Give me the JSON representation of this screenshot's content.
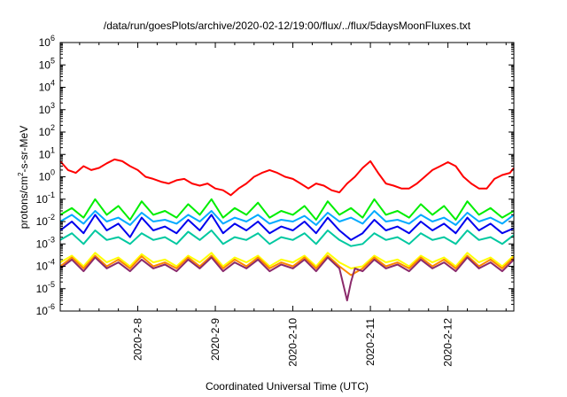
{
  "chart_data": {
    "type": "line",
    "title": "/data/run/goesPlots/archive/2020-02-12/19:00/flux/../flux/5daysMoonFluxes.txt",
    "xlabel": "Coordinated Universal Time (UTC)",
    "ylabel": "protons/cm²-s-sr-MeV",
    "ylabel_parts": {
      "pre": "protons/cm",
      "sup": "2",
      "post": "-s-sr-MeV"
    },
    "y_scale": "log",
    "ylim": [
      1e-06,
      1000000.0
    ],
    "xlim_days": [
      7.0,
      12.85
    ],
    "grid": false,
    "legend": "none",
    "y_ticks": [
      {
        "value": 1e-06,
        "base": "10",
        "exp": "-6"
      },
      {
        "value": 1e-05,
        "base": "10",
        "exp": "-5"
      },
      {
        "value": 0.0001,
        "base": "10",
        "exp": "-4"
      },
      {
        "value": 0.001,
        "base": "10",
        "exp": "-3"
      },
      {
        "value": 0.01,
        "base": "10",
        "exp": "-2"
      },
      {
        "value": 0.1,
        "base": "10",
        "exp": "-1"
      },
      {
        "value": 1,
        "base": "10",
        "exp": "0"
      },
      {
        "value": 10,
        "base": "10",
        "exp": "1"
      },
      {
        "value": 100,
        "base": "10",
        "exp": "2"
      },
      {
        "value": 1000,
        "base": "10",
        "exp": "3"
      },
      {
        "value": 10000,
        "base": "10",
        "exp": "4"
      },
      {
        "value": 100000,
        "base": "10",
        "exp": "5"
      },
      {
        "value": 1000000,
        "base": "10",
        "exp": "6"
      }
    ],
    "x_ticks": [
      {
        "day": 8,
        "label": "2020-2-8"
      },
      {
        "day": 9,
        "label": "2020-2-9"
      },
      {
        "day": 10,
        "label": "2020-2-10"
      },
      {
        "day": 11,
        "label": "2020-2-11"
      },
      {
        "day": 12,
        "label": "2020-2-12"
      }
    ],
    "series": [
      {
        "color": "#ff0000",
        "x": [
          7.0,
          7.1,
          7.2,
          7.3,
          7.4,
          7.5,
          7.6,
          7.7,
          7.8,
          7.9,
          8.0,
          8.1,
          8.2,
          8.3,
          8.4,
          8.5,
          8.6,
          8.7,
          8.8,
          8.9,
          9.0,
          9.1,
          9.2,
          9.3,
          9.4,
          9.5,
          9.6,
          9.7,
          9.8,
          9.9,
          10.0,
          10.1,
          10.2,
          10.3,
          10.4,
          10.5,
          10.6,
          10.7,
          10.8,
          10.9,
          11.0,
          11.1,
          11.2,
          11.3,
          11.4,
          11.5,
          11.6,
          11.7,
          11.8,
          11.9,
          12.0,
          12.1,
          12.2,
          12.3,
          12.4,
          12.5,
          12.6,
          12.7,
          12.8,
          12.85
        ],
        "y": [
          5,
          2,
          1.5,
          3,
          2,
          2.5,
          4,
          6,
          5,
          3,
          2,
          1,
          0.8,
          0.6,
          0.5,
          0.7,
          0.8,
          0.5,
          0.4,
          0.5,
          0.3,
          0.25,
          0.15,
          0.3,
          0.5,
          1,
          1.5,
          2,
          1.5,
          1,
          0.8,
          0.5,
          0.3,
          0.5,
          0.4,
          0.25,
          0.2,
          0.5,
          1,
          2.5,
          5,
          1.5,
          0.5,
          0.4,
          0.3,
          0.3,
          0.5,
          1,
          2,
          3,
          4.5,
          3,
          1,
          0.5,
          0.3,
          0.3,
          0.8,
          1.2,
          1.5,
          2.5
        ]
      },
      {
        "color": "#00ee00",
        "x": [
          7.0,
          7.15,
          7.3,
          7.45,
          7.6,
          7.75,
          7.9,
          8.05,
          8.2,
          8.35,
          8.5,
          8.65,
          8.8,
          8.95,
          9.1,
          9.25,
          9.4,
          9.55,
          9.7,
          9.85,
          10.0,
          10.15,
          10.3,
          10.45,
          10.6,
          10.75,
          10.9,
          11.05,
          11.2,
          11.35,
          11.5,
          11.65,
          11.8,
          11.95,
          12.1,
          12.25,
          12.4,
          12.55,
          12.7,
          12.85
        ],
        "y": [
          0.02,
          0.04,
          0.015,
          0.1,
          0.02,
          0.05,
          0.012,
          0.08,
          0.02,
          0.03,
          0.015,
          0.06,
          0.02,
          0.1,
          0.015,
          0.04,
          0.02,
          0.07,
          0.015,
          0.03,
          0.02,
          0.05,
          0.012,
          0.08,
          0.02,
          0.04,
          0.015,
          0.1,
          0.02,
          0.03,
          0.015,
          0.06,
          0.02,
          0.05,
          0.012,
          0.08,
          0.02,
          0.04,
          0.015,
          0.03
        ]
      },
      {
        "color": "#00aaff",
        "x": [
          7.0,
          7.15,
          7.3,
          7.45,
          7.6,
          7.75,
          7.9,
          8.05,
          8.2,
          8.35,
          8.5,
          8.65,
          8.8,
          8.95,
          9.1,
          9.25,
          9.4,
          9.55,
          9.7,
          9.85,
          10.0,
          10.15,
          10.3,
          10.45,
          10.6,
          10.75,
          10.9,
          11.05,
          11.2,
          11.35,
          11.5,
          11.65,
          11.8,
          11.95,
          12.1,
          12.25,
          12.4,
          12.55,
          12.7,
          12.85
        ],
        "y": [
          0.01,
          0.02,
          0.008,
          0.03,
          0.01,
          0.015,
          0.007,
          0.025,
          0.01,
          0.012,
          0.008,
          0.02,
          0.01,
          0.03,
          0.008,
          0.015,
          0.01,
          0.02,
          0.008,
          0.012,
          0.01,
          0.018,
          0.007,
          0.025,
          0.01,
          0.015,
          0.008,
          0.03,
          0.01,
          0.012,
          0.008,
          0.02,
          0.01,
          0.015,
          0.007,
          0.025,
          0.01,
          0.015,
          0.008,
          0.02
        ]
      },
      {
        "color": "#0000ee",
        "x": [
          7.0,
          7.15,
          7.3,
          7.45,
          7.6,
          7.75,
          7.9,
          8.05,
          8.2,
          8.35,
          8.5,
          8.65,
          8.8,
          8.95,
          9.1,
          9.25,
          9.4,
          9.55,
          9.7,
          9.85,
          10.0,
          10.15,
          10.3,
          10.45,
          10.6,
          10.75,
          10.9,
          11.05,
          11.2,
          11.35,
          11.5,
          11.65,
          11.8,
          11.95,
          12.1,
          12.25,
          12.4,
          12.55,
          12.7,
          12.85
        ],
        "y": [
          0.004,
          0.01,
          0.003,
          0.02,
          0.004,
          0.008,
          0.002,
          0.015,
          0.004,
          0.006,
          0.003,
          0.012,
          0.004,
          0.02,
          0.003,
          0.008,
          0.004,
          0.01,
          0.003,
          0.006,
          0.004,
          0.01,
          0.003,
          0.015,
          0.004,
          0.0015,
          0.003,
          0.012,
          0.004,
          0.006,
          0.003,
          0.01,
          0.004,
          0.008,
          0.003,
          0.015,
          0.004,
          0.008,
          0.003,
          0.005
        ]
      },
      {
        "color": "#00c8a0",
        "x": [
          7.0,
          7.15,
          7.3,
          7.45,
          7.6,
          7.75,
          7.9,
          8.05,
          8.2,
          8.35,
          8.5,
          8.65,
          8.8,
          8.95,
          9.1,
          9.25,
          9.4,
          9.55,
          9.7,
          9.85,
          10.0,
          10.15,
          10.3,
          10.45,
          10.6,
          10.75,
          10.9,
          11.05,
          11.2,
          11.35,
          11.5,
          11.65,
          11.8,
          11.95,
          12.1,
          12.25,
          12.4,
          12.55,
          12.7,
          12.85
        ],
        "y": [
          0.0015,
          0.003,
          0.001,
          0.004,
          0.0015,
          0.002,
          0.001,
          0.003,
          0.0015,
          0.002,
          0.001,
          0.0035,
          0.0015,
          0.004,
          0.001,
          0.002,
          0.0015,
          0.003,
          0.001,
          0.002,
          0.0015,
          0.003,
          0.001,
          0.004,
          0.0015,
          0.0008,
          0.001,
          0.003,
          0.0015,
          0.002,
          0.001,
          0.003,
          0.0015,
          0.002,
          0.001,
          0.004,
          0.0015,
          0.002,
          0.001,
          0.0025
        ]
      },
      {
        "color": "#ffff00",
        "x": [
          7.0,
          7.15,
          7.3,
          7.45,
          7.6,
          7.75,
          7.9,
          8.05,
          8.2,
          8.35,
          8.5,
          8.65,
          8.8,
          8.95,
          9.1,
          9.25,
          9.4,
          9.55,
          9.7,
          9.85,
          10.0,
          10.15,
          10.3,
          10.45,
          10.6,
          10.75,
          10.9,
          11.05,
          11.2,
          11.35,
          11.5,
          11.65,
          11.8,
          11.95,
          12.1,
          12.25,
          12.4,
          12.55,
          12.7,
          12.85
        ],
        "y": [
          0.00015,
          0.0003,
          0.0001,
          0.0004,
          0.00015,
          0.00025,
          0.0001,
          0.00035,
          0.00015,
          0.0002,
          0.0001,
          0.0003,
          0.00015,
          0.0004,
          0.0001,
          0.00025,
          0.00015,
          0.0003,
          0.0001,
          0.0002,
          0.00015,
          0.0003,
          0.0001,
          0.0004,
          0.00015,
          8e-05,
          0.0001,
          0.0003,
          0.00015,
          0.0002,
          0.0001,
          0.0003,
          0.00015,
          0.00025,
          0.0001,
          0.0004,
          0.00015,
          0.00025,
          0.0001,
          0.0003
        ]
      },
      {
        "color": "#ff8800",
        "x": [
          7.0,
          7.15,
          7.3,
          7.45,
          7.6,
          7.75,
          7.9,
          8.05,
          8.2,
          8.35,
          8.5,
          8.65,
          8.8,
          8.95,
          9.1,
          9.25,
          9.4,
          9.55,
          9.7,
          9.85,
          10.0,
          10.15,
          10.3,
          10.45,
          10.6,
          10.75,
          10.9,
          11.05,
          11.2,
          11.35,
          11.5,
          11.65,
          11.8,
          11.95,
          12.1,
          12.25,
          12.4,
          12.55,
          12.7,
          12.85
        ],
        "y": [
          0.0001,
          0.00025,
          8e-05,
          0.0003,
          0.0001,
          0.0002,
          8e-05,
          0.00028,
          0.0001,
          0.00015,
          8e-05,
          0.00025,
          0.0001,
          0.0003,
          8e-05,
          0.0002,
          0.0001,
          0.00025,
          8e-05,
          0.00015,
          0.0001,
          0.00025,
          8e-05,
          0.0003,
          0.0001,
          4e-05,
          8e-05,
          0.00025,
          0.0001,
          0.00015,
          8e-05,
          0.00025,
          0.0001,
          0.0002,
          8e-05,
          0.0003,
          0.0001,
          0.0002,
          8e-05,
          0.00025
        ]
      },
      {
        "color": "#8b2a6b",
        "x": [
          7.0,
          7.15,
          7.3,
          7.45,
          7.6,
          7.75,
          7.9,
          8.05,
          8.2,
          8.35,
          8.5,
          8.65,
          8.8,
          8.95,
          9.1,
          9.25,
          9.4,
          9.55,
          9.7,
          9.85,
          10.0,
          10.15,
          10.3,
          10.45,
          10.6,
          10.7,
          10.75,
          10.8,
          10.9,
          11.05,
          11.2,
          11.35,
          11.5,
          11.65,
          11.8,
          11.95,
          12.1,
          12.25,
          12.4,
          12.55,
          12.7,
          12.85
        ],
        "y": [
          8e-05,
          0.0002,
          6e-05,
          0.00025,
          8e-05,
          0.00015,
          6e-05,
          0.0002,
          8e-05,
          0.00012,
          6e-05,
          0.0002,
          8e-05,
          0.00025,
          6e-05,
          0.00015,
          8e-05,
          0.0002,
          6e-05,
          0.00012,
          8e-05,
          0.0002,
          6e-05,
          0.00025,
          8e-05,
          3e-06,
          2e-05,
          8e-05,
          6e-05,
          0.0002,
          8e-05,
          0.00012,
          6e-05,
          0.0002,
          8e-05,
          0.00015,
          6e-05,
          0.00025,
          8e-05,
          0.00015,
          6e-05,
          0.0002
        ]
      }
    ]
  }
}
